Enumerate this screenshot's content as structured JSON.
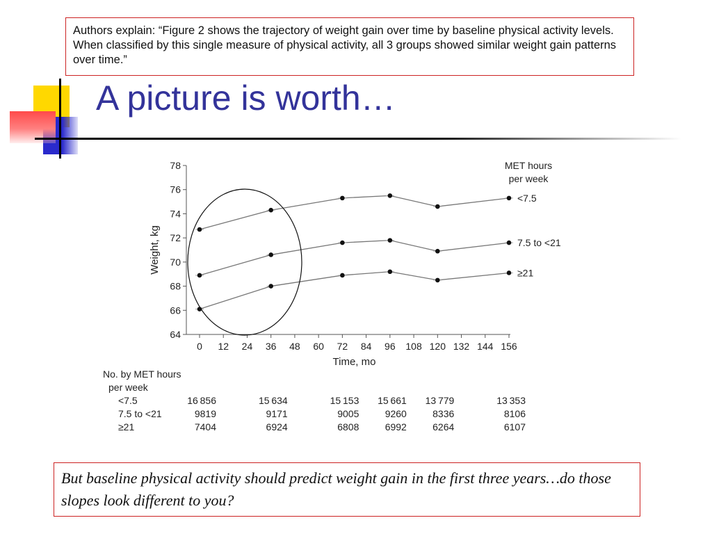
{
  "callout_top": {
    "text": "Authors explain: “Figure 2 shows the trajectory of weight gain over time by baseline physical activity levels. When classified by this single measure of physical activity, all 3 groups showed similar weight gain patterns over time.”"
  },
  "slide_title": "A picture is worth…",
  "callout_bottom": {
    "text": "But baseline physical activity should predict weight gain in the first three years…do those slopes look different to you?"
  },
  "colors": {
    "title": "#33339a",
    "callout_border": "#cc2222",
    "line": "#777777",
    "marker": "#111111"
  },
  "chart_data": {
    "type": "line",
    "ylabel": "Weight, kg",
    "xlabel": "Time, mo",
    "ylim": [
      64,
      78
    ],
    "xlim": [
      0,
      156
    ],
    "yticks": [
      64,
      66,
      68,
      70,
      72,
      74,
      76,
      78
    ],
    "xticks": [
      0,
      12,
      24,
      36,
      48,
      60,
      72,
      84,
      96,
      108,
      120,
      132,
      144,
      156
    ],
    "legend_title": [
      "MET hours",
      "per week"
    ],
    "x": [
      0,
      36,
      72,
      96,
      120,
      156
    ],
    "series": [
      {
        "name": "<7.5",
        "values": [
          72.7,
          74.3,
          75.3,
          75.5,
          74.6,
          75.3
        ]
      },
      {
        "name": "7.5 to <21",
        "values": [
          68.9,
          70.6,
          71.6,
          71.8,
          70.9,
          71.6
        ]
      },
      {
        "name": "≥21",
        "values": [
          66.1,
          68.0,
          68.9,
          69.2,
          68.5,
          69.1
        ]
      }
    ],
    "table": {
      "title": [
        "No. by MET hours",
        "per week"
      ],
      "rows": [
        {
          "label": "<7.5",
          "values": [
            "16 856",
            "15 634",
            "15 153",
            "15 661",
            "13 779",
            "13 353"
          ]
        },
        {
          "label": "7.5 to <21",
          "values": [
            "9819",
            "9171",
            "9005",
            "9260",
            "8336",
            "8106"
          ]
        },
        {
          "label": "≥21",
          "values": [
            "7404",
            "6924",
            "6808",
            "6992",
            "6264",
            "6107"
          ]
        }
      ]
    },
    "annotation": "circle"
  }
}
